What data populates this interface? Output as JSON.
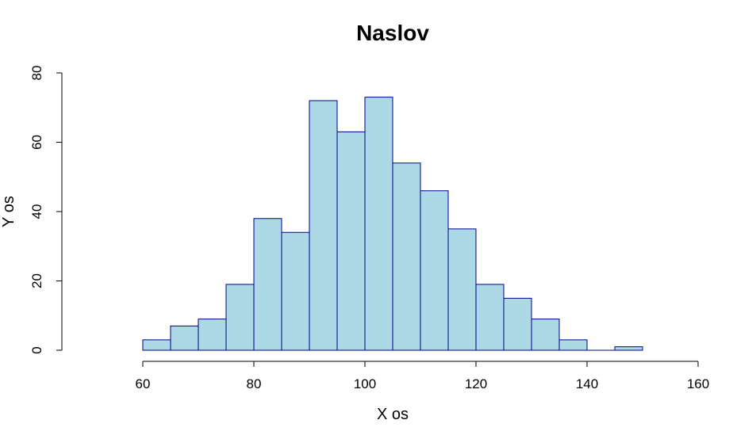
{
  "chart_data": {
    "type": "bar",
    "title": "Naslov",
    "xlabel": "X os",
    "ylabel": "Y os",
    "xlim": [
      50,
      160
    ],
    "ylim": [
      0,
      80
    ],
    "x_ticks": [
      60,
      80,
      100,
      120,
      140,
      160
    ],
    "y_ticks": [
      0,
      20,
      40,
      60,
      80
    ],
    "bin_edges": [
      60,
      65,
      70,
      75,
      80,
      85,
      90,
      95,
      100,
      105,
      110,
      115,
      120,
      125,
      130,
      135,
      140,
      145,
      150
    ],
    "values": [
      3,
      7,
      9,
      19,
      38,
      34,
      72,
      63,
      73,
      54,
      46,
      35,
      19,
      15,
      9,
      3,
      0,
      1
    ],
    "grid": false,
    "colors": {
      "fill": "#add8e6",
      "border": "#00008b"
    }
  }
}
